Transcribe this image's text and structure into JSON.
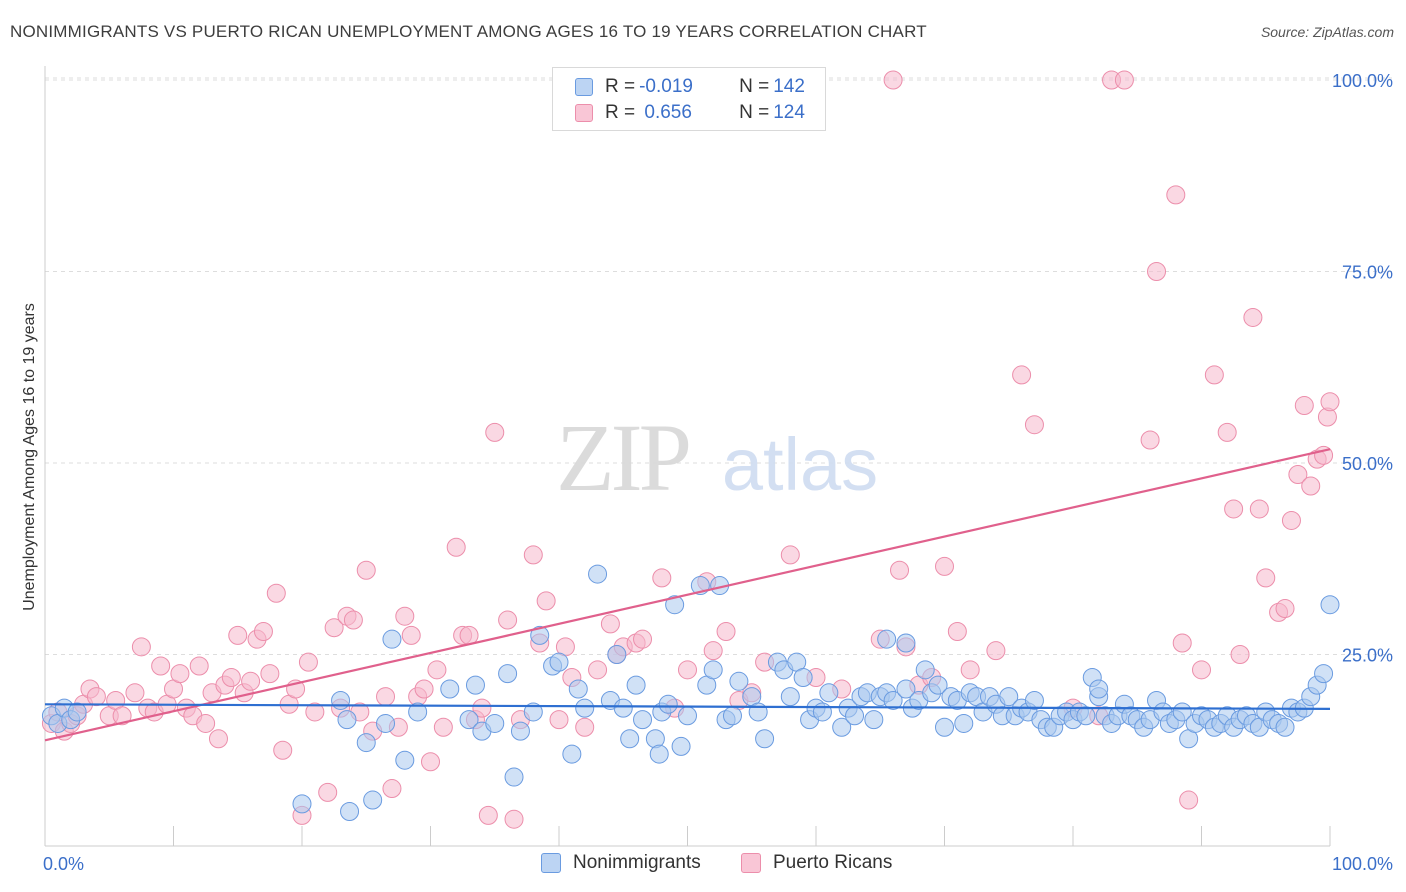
{
  "header": {
    "title": "NONIMMIGRANTS VS PUERTO RICAN UNEMPLOYMENT AMONG AGES 16 TO 19 YEARS CORRELATION CHART",
    "source": "Source: ZipAtlas.com"
  },
  "watermark": {
    "zip": "ZIP",
    "atlas": "atlas"
  },
  "legend_top": {
    "rows": [
      {
        "r_label": "R = ",
        "r_value": "-0.019",
        "n_label": "N = ",
        "n_value": "142"
      },
      {
        "r_label": "R = ",
        "r_value": " 0.656",
        "n_label": "N = ",
        "n_value": "124"
      }
    ]
  },
  "colors": {
    "blue_fill": "#a9c8ef",
    "blue_stroke": "#6a9be0",
    "blue_line": "#2e6fd1",
    "pink_fill": "#f6b8cc",
    "pink_stroke": "#ec8eab",
    "pink_line": "#e0608c",
    "axis_label": "#3b6fc9",
    "grid": "#dddddd"
  },
  "chart_data": {
    "type": "scatter",
    "title": "NONIMMIGRANTS VS PUERTO RICAN UNEMPLOYMENT AMONG AGES 16 TO 19 YEARS CORRELATION CHART",
    "xlabel": "",
    "ylabel": "Unemployment Among Ages 16 to 19 years",
    "xlim": [
      0,
      100
    ],
    "ylim": [
      0,
      102
    ],
    "x_tick_labels": [
      "0.0%",
      "100.0%"
    ],
    "y_ticks": [
      25,
      50,
      75,
      100
    ],
    "y_tick_labels": [
      "25.0%",
      "50.0%",
      "75.0%",
      "100.0%"
    ],
    "grid": true,
    "legend_position": "top-center",
    "series": [
      {
        "name": "Nonimmigrants",
        "color": "#a9c8ef",
        "trend": {
          "x": [
            0,
            100
          ],
          "y": [
            18.5,
            17.9
          ]
        },
        "points": [
          [
            0.5,
            17
          ],
          [
            1,
            16
          ],
          [
            1.5,
            18
          ],
          [
            2,
            16.5
          ],
          [
            2.5,
            17.5
          ],
          [
            20,
            5.5
          ],
          [
            23,
            19
          ],
          [
            23.5,
            16.5
          ],
          [
            23.7,
            4.5
          ],
          [
            25,
            13.5
          ],
          [
            25.5,
            6
          ],
          [
            26.5,
            16
          ],
          [
            28,
            11.2
          ],
          [
            29,
            17.5
          ],
          [
            31.5,
            20.5
          ],
          [
            33,
            16.5
          ],
          [
            34,
            15
          ],
          [
            35,
            16
          ],
          [
            36,
            22.5
          ],
          [
            36.5,
            9
          ],
          [
            37,
            15
          ],
          [
            38,
            17.5
          ],
          [
            38.5,
            27.5
          ],
          [
            39.5,
            23.5
          ],
          [
            40,
            24
          ],
          [
            41,
            12
          ],
          [
            41.5,
            20.5
          ],
          [
            42,
            18
          ],
          [
            43,
            35.5
          ],
          [
            44,
            19
          ],
          [
            44.5,
            25
          ],
          [
            45,
            18
          ],
          [
            45.5,
            14
          ],
          [
            46,
            21
          ],
          [
            46.5,
            16.5
          ],
          [
            47.5,
            14
          ],
          [
            47.8,
            12
          ],
          [
            48,
            17.5
          ],
          [
            49,
            31.5
          ],
          [
            49.5,
            13
          ],
          [
            50,
            17
          ],
          [
            51,
            34
          ],
          [
            51.5,
            21
          ],
          [
            52,
            23
          ],
          [
            52.5,
            34
          ],
          [
            53,
            16.5
          ],
          [
            53.5,
            17
          ],
          [
            54,
            21.5
          ],
          [
            55,
            19.5
          ],
          [
            55.5,
            17.5
          ],
          [
            56,
            14
          ],
          [
            57,
            24
          ],
          [
            57.5,
            23
          ],
          [
            58,
            19.5
          ],
          [
            58.5,
            24
          ],
          [
            59,
            22
          ],
          [
            59.5,
            16.5
          ],
          [
            60,
            18
          ],
          [
            60.5,
            17.5
          ],
          [
            61,
            20
          ],
          [
            62,
            15.5
          ],
          [
            62.5,
            18
          ],
          [
            63,
            17
          ],
          [
            63.5,
            19.5
          ],
          [
            64,
            20
          ],
          [
            64.5,
            16.5
          ],
          [
            65,
            19.5
          ],
          [
            65.5,
            20
          ],
          [
            66,
            19
          ],
          [
            67,
            20.5
          ],
          [
            67.5,
            18
          ],
          [
            68,
            19
          ],
          [
            68.5,
            23
          ],
          [
            69,
            20
          ],
          [
            69.5,
            21
          ],
          [
            70,
            15.5
          ],
          [
            70.5,
            19.5
          ],
          [
            71,
            19
          ],
          [
            71.5,
            16
          ],
          [
            72,
            20
          ],
          [
            72.5,
            19.5
          ],
          [
            73,
            17.5
          ],
          [
            73.5,
            19.5
          ],
          [
            74,
            18.5
          ],
          [
            74.5,
            17
          ],
          [
            75,
            19.5
          ],
          [
            75.5,
            17
          ],
          [
            76,
            18
          ],
          [
            76.5,
            17.5
          ],
          [
            77,
            19
          ],
          [
            77.5,
            16.5
          ],
          [
            78,
            15.5
          ],
          [
            78.5,
            15.5
          ],
          [
            79,
            17
          ],
          [
            79.5,
            17.5
          ],
          [
            80,
            16.5
          ],
          [
            80.5,
            17.5
          ],
          [
            81,
            17
          ],
          [
            81.5,
            22
          ],
          [
            82,
            19.5
          ],
          [
            82.5,
            17
          ],
          [
            83,
            16
          ],
          [
            83.5,
            17
          ],
          [
            84,
            18.5
          ],
          [
            84.5,
            17
          ],
          [
            85,
            16.5
          ],
          [
            85.5,
            15.5
          ],
          [
            86,
            16.5
          ],
          [
            86.5,
            19
          ],
          [
            87,
            17.5
          ],
          [
            87.5,
            16
          ],
          [
            88,
            16.5
          ],
          [
            88.5,
            17.5
          ],
          [
            89,
            14
          ],
          [
            89.5,
            16
          ],
          [
            90,
            17
          ],
          [
            90.5,
            16.5
          ],
          [
            91,
            15.5
          ],
          [
            91.5,
            16
          ],
          [
            92,
            17
          ],
          [
            92.5,
            15.5
          ],
          [
            93,
            16.5
          ],
          [
            93.5,
            17
          ],
          [
            94,
            16
          ],
          [
            94.5,
            15.5
          ],
          [
            95,
            17.5
          ],
          [
            95.5,
            16.5
          ],
          [
            96,
            16
          ],
          [
            96.5,
            15.5
          ],
          [
            97,
            18
          ],
          [
            97.5,
            17.5
          ],
          [
            98,
            18
          ],
          [
            98.5,
            19.5
          ],
          [
            99,
            21
          ],
          [
            99.5,
            22.5
          ],
          [
            100,
            31.5
          ],
          [
            27,
            27
          ],
          [
            67,
            26.5
          ],
          [
            65.5,
            27
          ],
          [
            33.5,
            21
          ],
          [
            48.5,
            18.5
          ],
          [
            82,
            20.5
          ]
        ]
      },
      {
        "name": "Puerto Ricans",
        "color": "#f6b8cc",
        "trend": {
          "x": [
            0,
            100
          ],
          "y": [
            13.8,
            51.8
          ]
        },
        "points": [
          [
            0.5,
            16
          ],
          [
            1,
            17.5
          ],
          [
            1.5,
            15
          ],
          [
            2,
            16
          ],
          [
            2.5,
            17
          ],
          [
            3,
            18.5
          ],
          [
            3.5,
            20.5
          ],
          [
            4,
            19.5
          ],
          [
            5,
            17
          ],
          [
            5.5,
            19
          ],
          [
            6,
            17
          ],
          [
            7,
            20
          ],
          [
            7.5,
            26
          ],
          [
            8,
            18
          ],
          [
            8.5,
            17.5
          ],
          [
            9,
            23.5
          ],
          [
            9.5,
            18.5
          ],
          [
            10,
            20.5
          ],
          [
            10.5,
            22.5
          ],
          [
            11,
            18
          ],
          [
            11.5,
            17
          ],
          [
            12,
            23.5
          ],
          [
            12.5,
            16
          ],
          [
            13,
            20
          ],
          [
            13.5,
            14
          ],
          [
            14,
            21
          ],
          [
            14.5,
            22
          ],
          [
            15,
            27.5
          ],
          [
            15.5,
            20
          ],
          [
            16,
            21.5
          ],
          [
            16.5,
            27
          ],
          [
            17,
            28
          ],
          [
            17.5,
            22.5
          ],
          [
            18,
            33
          ],
          [
            18.5,
            12.5
          ],
          [
            19,
            18.5
          ],
          [
            19.5,
            20.5
          ],
          [
            20,
            4
          ],
          [
            20.5,
            24
          ],
          [
            21,
            17.5
          ],
          [
            22,
            7
          ],
          [
            22.5,
            28.5
          ],
          [
            23,
            18
          ],
          [
            23.5,
            30
          ],
          [
            24,
            29.5
          ],
          [
            24.5,
            17.5
          ],
          [
            25,
            36
          ],
          [
            25.5,
            15
          ],
          [
            26.5,
            19.5
          ],
          [
            27,
            7.5
          ],
          [
            27.5,
            15.5
          ],
          [
            28,
            30
          ],
          [
            28.5,
            27.5
          ],
          [
            29,
            19.5
          ],
          [
            29.5,
            20.5
          ],
          [
            30,
            11
          ],
          [
            30.5,
            23
          ],
          [
            31,
            15.5
          ],
          [
            32,
            39
          ],
          [
            32.5,
            27.5
          ],
          [
            33,
            27.5
          ],
          [
            33.5,
            16.5
          ],
          [
            34,
            18
          ],
          [
            34.5,
            4
          ],
          [
            35,
            54
          ],
          [
            36,
            29.5
          ],
          [
            36.5,
            3.5
          ],
          [
            37,
            16.5
          ],
          [
            38,
            38
          ],
          [
            38.5,
            26.5
          ],
          [
            39,
            32
          ],
          [
            40,
            16.5
          ],
          [
            40.5,
            26
          ],
          [
            41,
            22
          ],
          [
            42,
            15.5
          ],
          [
            43,
            23
          ],
          [
            44,
            29
          ],
          [
            44.5,
            25
          ],
          [
            45,
            26
          ],
          [
            46,
            26.5
          ],
          [
            46.5,
            27
          ],
          [
            48,
            35
          ],
          [
            49,
            18
          ],
          [
            50,
            23
          ],
          [
            51.5,
            34.5
          ],
          [
            52,
            25.5
          ],
          [
            53,
            28
          ],
          [
            54,
            19
          ],
          [
            55,
            20
          ],
          [
            56,
            24
          ],
          [
            58,
            38
          ],
          [
            60,
            22
          ],
          [
            62,
            20.5
          ],
          [
            65,
            27
          ],
          [
            66,
            100
          ],
          [
            66.5,
            36
          ],
          [
            67,
            26
          ],
          [
            68,
            21
          ],
          [
            69,
            22
          ],
          [
            70,
            36.5
          ],
          [
            71,
            28
          ],
          [
            72,
            23
          ],
          [
            74,
            25.5
          ],
          [
            76,
            61.5
          ],
          [
            77,
            55
          ],
          [
            80,
            18
          ],
          [
            82,
            17
          ],
          [
            83,
            100
          ],
          [
            84,
            100
          ],
          [
            86,
            53
          ],
          [
            86.5,
            75
          ],
          [
            88,
            85
          ],
          [
            88.5,
            26.5
          ],
          [
            89,
            6
          ],
          [
            90,
            23
          ],
          [
            91,
            61.5
          ],
          [
            92,
            54
          ],
          [
            92.5,
            44
          ],
          [
            93,
            25
          ],
          [
            94,
            69
          ],
          [
            94.5,
            44
          ],
          [
            95,
            35
          ],
          [
            96,
            30.5
          ],
          [
            96.5,
            31
          ],
          [
            97,
            42.5
          ],
          [
            97.5,
            48.5
          ],
          [
            98,
            57.5
          ],
          [
            98.5,
            47
          ],
          [
            99,
            50.5
          ],
          [
            99.5,
            51
          ],
          [
            99.8,
            56
          ],
          [
            100,
            58
          ]
        ]
      }
    ]
  }
}
